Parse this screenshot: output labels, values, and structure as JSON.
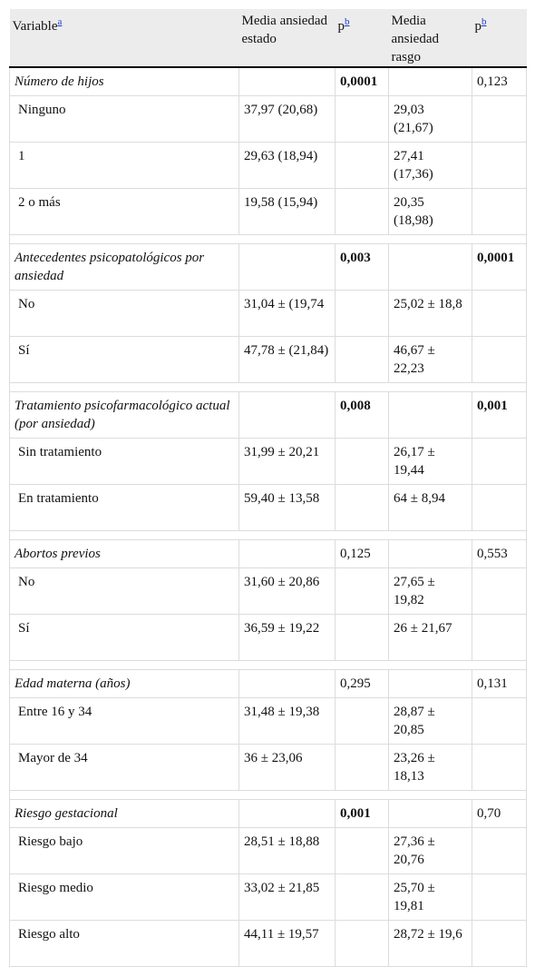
{
  "table": {
    "header": [
      {
        "text": "Variable",
        "sup": "a"
      },
      {
        "text": "Media ansiedad estado"
      },
      {
        "text": "p",
        "sup": "b"
      },
      {
        "text": "Media ansiedad rasgo"
      },
      {
        "text": "p",
        "sup": "b"
      }
    ],
    "groups": [
      {
        "title": "Número de hijos",
        "p_estado": "0,0001",
        "p_estado_bold": true,
        "p_rasgo": "0,123",
        "p_rasgo_bold": false,
        "rows": [
          [
            "Ninguno",
            "37,97 (20,68)",
            "29,03 (21,67)"
          ],
          [
            "1",
            "29,63 (18,94)",
            "27,41 (17,36)"
          ],
          [
            "2 o más",
            "19,58 (15,94)",
            "20,35 (18,98)"
          ]
        ]
      },
      {
        "title": "Antecedentes psicopatológicos por ansiedad",
        "p_estado": "0,003",
        "p_estado_bold": true,
        "p_rasgo": "0,0001",
        "p_rasgo_bold": true,
        "rows": [
          [
            "No",
            "31,04 ± (19,74",
            "25,02 ± 18,8"
          ],
          [
            "Sí",
            "47,78 ± (21,84)",
            "46,67 ± 22,23"
          ]
        ]
      },
      {
        "title": "Tratamiento psicofarmacológico actual (por ansiedad)",
        "p_estado": "0,008",
        "p_estado_bold": true,
        "p_rasgo": "0,001",
        "p_rasgo_bold": true,
        "rows": [
          [
            "Sin tratamiento",
            "31,99 ± 20,21",
            "26,17 ± 19,44"
          ],
          [
            "En tratamiento",
            "59,40 ± 13,58",
            "64 ± 8,94"
          ]
        ]
      },
      {
        "title": "Abortos previos",
        "p_estado": "0,125",
        "p_estado_bold": false,
        "p_rasgo": "0,553",
        "p_rasgo_bold": false,
        "rows": [
          [
            "No",
            "31,60 ± 20,86",
            "27,65 ± 19,82"
          ],
          [
            "Sí",
            "36,59 ± 19,22",
            "26 ± 21,67"
          ]
        ]
      },
      {
        "title": "Edad materna (años)",
        "p_estado": "0,295",
        "p_estado_bold": false,
        "p_rasgo": "0,131",
        "p_rasgo_bold": false,
        "rows": [
          [
            "Entre 16 y 34",
            "31,48 ± 19,38",
            "28,87 ± 20,85"
          ],
          [
            "Mayor de 34",
            "36 ± 23,06",
            "23,26 ± 18,13"
          ]
        ]
      },
      {
        "title": "Riesgo gestacional",
        "p_estado": "0,001",
        "p_estado_bold": true,
        "p_rasgo": "0,70",
        "p_rasgo_bold": false,
        "rows": [
          [
            "Riesgo bajo",
            "28,51 ± 18,88",
            "27,36 ± 20,76"
          ],
          [
            "Riesgo medio",
            "33,02 ± 21,85",
            "25,70 ± 19,81"
          ],
          [
            "Riesgo alto",
            "44,11 ± 19,57",
            "28,72 ± 19,6"
          ]
        ]
      }
    ]
  }
}
